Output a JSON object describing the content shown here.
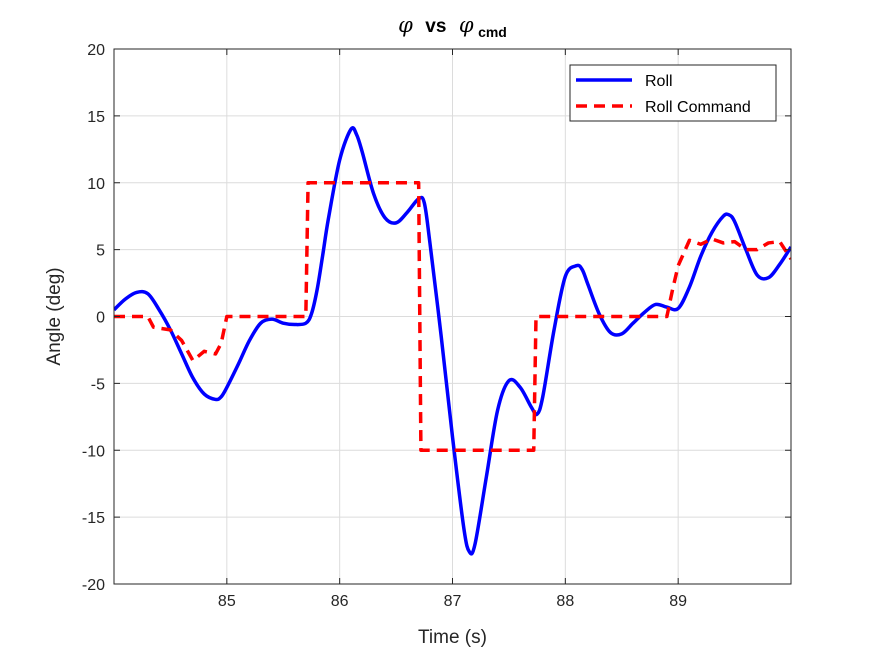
{
  "chart_data": {
    "type": "line",
    "title": {
      "symbol": "φ",
      "middle": "vs",
      "symbol2": "φ",
      "subscript": "cmd"
    },
    "xlabel": "Time (s)",
    "ylabel": "Angle (deg)",
    "xlim": [
      84.0,
      90.0
    ],
    "ylim": [
      -20,
      20
    ],
    "xticks": [
      85,
      86,
      87,
      88,
      89
    ],
    "yticks": [
      -20,
      -15,
      -10,
      -5,
      0,
      5,
      10,
      15,
      20
    ],
    "grid": true,
    "legend_position": "top-right",
    "series": [
      {
        "name": "Roll",
        "color": "#0000ff",
        "style": "solid",
        "x": [
          84.0,
          84.1,
          84.2,
          84.3,
          84.4,
          84.5,
          84.6,
          84.7,
          84.8,
          84.9,
          84.95,
          85.0,
          85.1,
          85.2,
          85.3,
          85.4,
          85.5,
          85.6,
          85.7,
          85.75,
          85.8,
          85.85,
          85.9,
          86.0,
          86.1,
          86.15,
          86.2,
          86.3,
          86.4,
          86.5,
          86.6,
          86.7,
          86.75,
          86.8,
          86.9,
          87.0,
          87.1,
          87.15,
          87.2,
          87.3,
          87.4,
          87.5,
          87.6,
          87.7,
          87.75,
          87.8,
          87.9,
          88.0,
          88.1,
          88.15,
          88.2,
          88.3,
          88.4,
          88.5,
          88.6,
          88.7,
          88.8,
          88.9,
          89.0,
          89.1,
          89.2,
          89.3,
          89.4,
          89.45,
          89.5,
          89.6,
          89.7,
          89.8,
          89.9,
          90.0
        ],
        "values": [
          0.5,
          1.3,
          1.8,
          1.7,
          0.5,
          -1.0,
          -2.8,
          -4.6,
          -5.8,
          -6.2,
          -6.0,
          -5.3,
          -3.6,
          -1.8,
          -0.5,
          -0.2,
          -0.5,
          -0.6,
          -0.5,
          0.2,
          2.0,
          4.6,
          7.3,
          11.7,
          14.0,
          13.6,
          12.3,
          9.2,
          7.4,
          7.0,
          7.8,
          8.8,
          8.5,
          5.5,
          -1.5,
          -9.0,
          -15.8,
          -17.6,
          -17.0,
          -12.0,
          -7.0,
          -4.8,
          -5.3,
          -6.8,
          -7.3,
          -6.0,
          -1.0,
          3.0,
          3.8,
          3.5,
          2.4,
          0.2,
          -1.2,
          -1.3,
          -0.5,
          0.3,
          0.9,
          0.7,
          0.6,
          2.2,
          4.5,
          6.3,
          7.5,
          7.6,
          7.1,
          5.0,
          3.1,
          2.9,
          3.9,
          5.2
        ]
      },
      {
        "name": "Roll Command",
        "color": "#ff0000",
        "style": "dashed",
        "x": [
          84.0,
          84.3,
          84.35,
          84.5,
          84.6,
          84.7,
          84.8,
          84.9,
          84.95,
          85.0,
          85.1,
          85.7,
          85.72,
          86.7,
          86.72,
          87.72,
          87.74,
          88.9,
          88.95,
          89.0,
          89.1,
          89.2,
          89.3,
          89.4,
          89.5,
          89.6,
          89.7,
          89.8,
          89.9,
          90.0
        ],
        "values": [
          0,
          0,
          -0.8,
          -1.0,
          -1.8,
          -3.3,
          -2.6,
          -2.8,
          -2.0,
          0,
          0,
          0,
          10,
          10,
          -10,
          -10,
          0,
          0,
          2.0,
          3.8,
          5.7,
          5.4,
          5.8,
          5.5,
          5.6,
          5.0,
          5.0,
          5.5,
          5.6,
          4.3
        ]
      }
    ]
  }
}
